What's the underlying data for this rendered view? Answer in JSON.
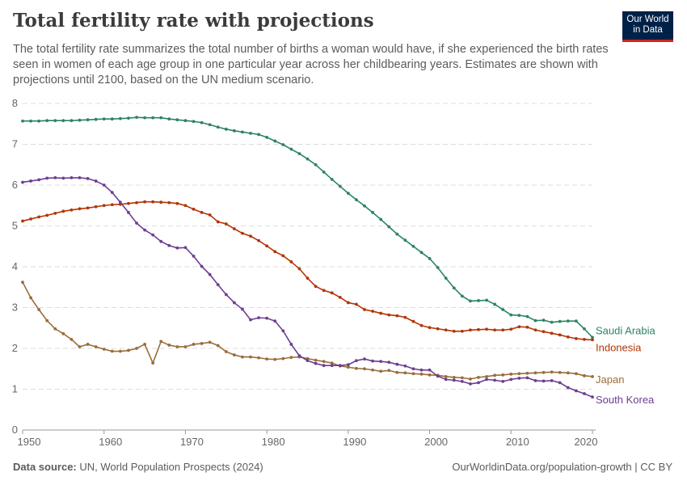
{
  "header": {
    "title": "Total fertility rate with projections",
    "subtitle": "The total fertility rate summarizes the total number of births a woman would have, if she experienced the birth rates seen in women of each age group in one particular year across her childbearing years. Estimates are shown with projections until 2100, based on the UN medium scenario.",
    "logo_line1": "Our World",
    "logo_line2": "in Data"
  },
  "footer": {
    "source_label": "Data source:",
    "source_text": "UN, World Population Prospects (2024)",
    "url_license": "OurWorldinData.org/population-growth | CC BY"
  },
  "chart_data": {
    "type": "line",
    "title": "Total fertility rate with projections",
    "xlabel": "",
    "ylabel": "",
    "xlim": [
      1950,
      2020
    ],
    "ylim": [
      0,
      8
    ],
    "x_ticks": [
      "1950",
      "1960",
      "1970",
      "1980",
      "1990",
      "2000",
      "2010",
      "2020"
    ],
    "y_ticks": [
      "0",
      "1",
      "2",
      "3",
      "4",
      "5",
      "6",
      "7",
      "8"
    ],
    "grid": "horizontal dashed",
    "legend": "inline labels at right end of lines",
    "x_start": 1950,
    "series": [
      {
        "name": "Saudi Arabia",
        "color": "#2c8465",
        "values": [
          7.57,
          7.57,
          7.57,
          7.58,
          7.58,
          7.58,
          7.58,
          7.59,
          7.6,
          7.61,
          7.62,
          7.62,
          7.63,
          7.64,
          7.66,
          7.65,
          7.65,
          7.65,
          7.62,
          7.6,
          7.58,
          7.56,
          7.53,
          7.48,
          7.42,
          7.37,
          7.33,
          7.3,
          7.27,
          7.24,
          7.17,
          7.08,
          6.99,
          6.88,
          6.77,
          6.64,
          6.5,
          6.32,
          6.14,
          5.97,
          5.8,
          5.64,
          5.49,
          5.33,
          5.16,
          4.98,
          4.8,
          4.65,
          4.5,
          4.35,
          4.2,
          3.98,
          3.72,
          3.48,
          3.28,
          3.16,
          3.17,
          3.18,
          3.08,
          2.95,
          2.82,
          2.81,
          2.78,
          2.68,
          2.69,
          2.64,
          2.66,
          2.67,
          2.67,
          2.48,
          2.27
        ]
      },
      {
        "name": "Indonesia",
        "color": "#b13507",
        "values": [
          5.12,
          5.17,
          5.22,
          5.26,
          5.31,
          5.36,
          5.39,
          5.42,
          5.44,
          5.47,
          5.5,
          5.52,
          5.53,
          5.55,
          5.57,
          5.59,
          5.59,
          5.58,
          5.57,
          5.55,
          5.5,
          5.41,
          5.33,
          5.27,
          5.1,
          5.05,
          4.93,
          4.82,
          4.75,
          4.64,
          4.51,
          4.37,
          4.27,
          4.12,
          3.95,
          3.72,
          3.52,
          3.42,
          3.36,
          3.25,
          3.12,
          3.08,
          2.95,
          2.91,
          2.86,
          2.82,
          2.8,
          2.76,
          2.66,
          2.56,
          2.51,
          2.48,
          2.45,
          2.42,
          2.42,
          2.45,
          2.46,
          2.47,
          2.45,
          2.45,
          2.47,
          2.53,
          2.52,
          2.45,
          2.41,
          2.37,
          2.33,
          2.28,
          2.24,
          2.22,
          2.21
        ]
      },
      {
        "name": "Japan",
        "color": "#996d39",
        "values": [
          3.62,
          3.24,
          2.95,
          2.68,
          2.48,
          2.36,
          2.22,
          2.04,
          2.1,
          2.04,
          1.98,
          1.93,
          1.93,
          1.95,
          2.0,
          2.1,
          1.64,
          2.17,
          2.08,
          2.04,
          2.04,
          2.1,
          2.12,
          2.15,
          2.07,
          1.92,
          1.84,
          1.79,
          1.79,
          1.77,
          1.74,
          1.73,
          1.75,
          1.78,
          1.79,
          1.75,
          1.71,
          1.68,
          1.64,
          1.57,
          1.54,
          1.51,
          1.5,
          1.47,
          1.44,
          1.46,
          1.41,
          1.4,
          1.38,
          1.37,
          1.35,
          1.34,
          1.31,
          1.29,
          1.28,
          1.25,
          1.29,
          1.31,
          1.34,
          1.35,
          1.37,
          1.38,
          1.39,
          1.4,
          1.41,
          1.42,
          1.41,
          1.4,
          1.38,
          1.33,
          1.31
        ]
      },
      {
        "name": "South Korea",
        "color": "#6d3e91",
        "values": [
          6.07,
          6.1,
          6.13,
          6.17,
          6.18,
          6.17,
          6.18,
          6.18,
          6.16,
          6.1,
          6.0,
          5.82,
          5.58,
          5.33,
          5.07,
          4.9,
          4.78,
          4.62,
          4.52,
          4.46,
          4.47,
          4.26,
          4.01,
          3.81,
          3.56,
          3.32,
          3.12,
          2.96,
          2.7,
          2.75,
          2.74,
          2.67,
          2.43,
          2.1,
          1.82,
          1.7,
          1.63,
          1.58,
          1.58,
          1.58,
          1.6,
          1.7,
          1.74,
          1.69,
          1.68,
          1.66,
          1.61,
          1.57,
          1.5,
          1.47,
          1.47,
          1.32,
          1.24,
          1.22,
          1.19,
          1.13,
          1.16,
          1.24,
          1.22,
          1.19,
          1.24,
          1.27,
          1.28,
          1.21,
          1.2,
          1.21,
          1.16,
          1.04,
          0.96,
          0.89,
          0.81
        ]
      }
    ]
  }
}
